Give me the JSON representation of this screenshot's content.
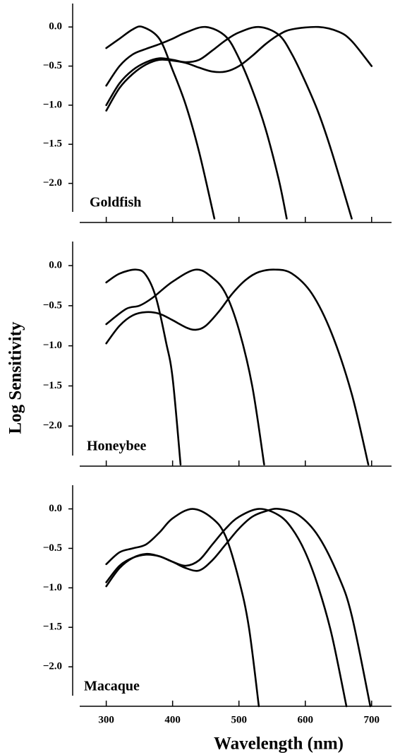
{
  "chart_data": [
    {
      "type": "line",
      "label": "Goldfish",
      "xlim": [
        260,
        730
      ],
      "ylim": [
        -2.5,
        0.3
      ],
      "xticks": [
        300,
        400,
        500,
        600,
        700
      ],
      "xtick_labels": false,
      "yticks": [
        {
          "value": 0,
          "label": "0.0"
        },
        {
          "value": -0.5,
          "label": "−0.5"
        },
        {
          "value": -1,
          "label": "−1.0"
        },
        {
          "value": -1.5,
          "label": "−1.5"
        },
        {
          "value": -2,
          "label": "−2.0"
        }
      ],
      "series": [
        {
          "color": "#000000",
          "x": [
            300,
            320,
            340,
            355,
            380,
            400,
            420,
            440,
            463
          ],
          "values": [
            -0.27,
            -0.15,
            -0.03,
            0,
            -0.15,
            -0.55,
            -1.0,
            -1.6,
            -2.45
          ]
        },
        {
          "color": "#000000",
          "x": [
            300,
            320,
            340,
            360,
            380,
            400,
            420,
            450,
            480,
            500,
            520,
            540,
            560,
            572
          ],
          "values": [
            -0.75,
            -0.5,
            -0.35,
            -0.28,
            -0.22,
            -0.15,
            -0.07,
            0,
            -0.12,
            -0.4,
            -0.8,
            -1.3,
            -1.95,
            -2.45
          ]
        },
        {
          "color": "#000000",
          "x": [
            300,
            320,
            340,
            360,
            380,
            400,
            420,
            440,
            460,
            480,
            500,
            530,
            560,
            580,
            600,
            620,
            640,
            670
          ],
          "values": [
            -1.0,
            -0.72,
            -0.55,
            -0.45,
            -0.4,
            -0.42,
            -0.45,
            -0.42,
            -0.3,
            -0.17,
            -0.07,
            0,
            -0.1,
            -0.35,
            -0.7,
            -1.1,
            -1.6,
            -2.45
          ]
        },
        {
          "color": "#000000",
          "x": [
            300,
            320,
            340,
            360,
            380,
            400,
            420,
            440,
            460,
            480,
            500,
            520,
            540,
            560,
            580,
            620,
            650,
            670,
            700
          ],
          "values": [
            -1.07,
            -0.78,
            -0.6,
            -0.48,
            -0.42,
            -0.43,
            -0.46,
            -0.52,
            -0.57,
            -0.57,
            -0.5,
            -0.37,
            -0.22,
            -0.1,
            -0.03,
            0,
            -0.06,
            -0.18,
            -0.5
          ]
        }
      ]
    },
    {
      "type": "line",
      "label": "Honeybee",
      "ylabel": "Log Sensitivity",
      "xlim": [
        260,
        730
      ],
      "ylim": [
        -2.5,
        0.3
      ],
      "xticks": [
        300,
        400,
        500,
        600,
        700
      ],
      "xtick_labels": false,
      "yticks": [
        {
          "value": 0,
          "label": "0.0"
        },
        {
          "value": -0.5,
          "label": "−0.5"
        },
        {
          "value": -1,
          "label": "−1.0"
        },
        {
          "value": -1.5,
          "label": "−1.5"
        },
        {
          "value": -2,
          "label": "−2.0"
        }
      ],
      "series": [
        {
          "color": "#000000",
          "x": [
            300,
            320,
            345,
            360,
            375,
            390,
            400,
            412
          ],
          "values": [
            -0.21,
            -0.1,
            -0.05,
            -0.12,
            -0.4,
            -0.95,
            -1.4,
            -2.48
          ]
        },
        {
          "color": "#000000",
          "x": [
            300,
            330,
            350,
            370,
            400,
            435,
            460,
            480,
            500,
            520,
            538
          ],
          "values": [
            -0.73,
            -0.54,
            -0.5,
            -0.4,
            -0.2,
            -0.05,
            -0.15,
            -0.35,
            -0.8,
            -1.5,
            -2.48
          ]
        },
        {
          "color": "#000000",
          "x": [
            300,
            320,
            340,
            360,
            380,
            400,
            420,
            435,
            450,
            470,
            490,
            510,
            530,
            555,
            580,
            610,
            640,
            670,
            695
          ],
          "values": [
            -0.97,
            -0.75,
            -0.62,
            -0.58,
            -0.6,
            -0.68,
            -0.77,
            -0.8,
            -0.75,
            -0.57,
            -0.35,
            -0.18,
            -0.08,
            -0.05,
            -0.1,
            -0.35,
            -0.85,
            -1.6,
            -2.48
          ]
        }
      ]
    },
    {
      "type": "line",
      "label": "Macaque",
      "xlabel": "Wavelength (nm)",
      "xlim": [
        260,
        730
      ],
      "ylim": [
        -2.5,
        0.3
      ],
      "xticks": [
        300,
        400,
        500,
        600,
        700
      ],
      "xtick_labels": true,
      "yticks": [
        {
          "value": 0,
          "label": "0.0"
        },
        {
          "value": -0.5,
          "label": "−0.5"
        },
        {
          "value": -1,
          "label": "−1.0"
        },
        {
          "value": -1.5,
          "label": "−1.5"
        },
        {
          "value": -2,
          "label": "−2.0"
        }
      ],
      "series": [
        {
          "color": "#000000",
          "x": [
            300,
            320,
            340,
            360,
            380,
            400,
            430,
            460,
            480,
            500,
            515,
            530
          ],
          "values": [
            -0.7,
            -0.55,
            -0.5,
            -0.45,
            -0.3,
            -0.12,
            0,
            -0.12,
            -0.35,
            -0.9,
            -1.5,
            -2.5
          ]
        },
        {
          "color": "#000000",
          "x": [
            300,
            320,
            340,
            360,
            380,
            400,
            420,
            440,
            460,
            480,
            500,
            530,
            560,
            580,
            600,
            620,
            640,
            662
          ],
          "values": [
            -0.93,
            -0.72,
            -0.62,
            -0.58,
            -0.6,
            -0.67,
            -0.72,
            -0.65,
            -0.45,
            -0.25,
            -0.1,
            0,
            -0.08,
            -0.25,
            -0.55,
            -1.0,
            -1.6,
            -2.5
          ]
        },
        {
          "color": "#000000",
          "x": [
            300,
            320,
            340,
            360,
            380,
            400,
            420,
            440,
            460,
            480,
            500,
            520,
            540,
            560,
            590,
            620,
            650,
            670,
            698
          ],
          "values": [
            -0.98,
            -0.75,
            -0.62,
            -0.57,
            -0.6,
            -0.67,
            -0.75,
            -0.78,
            -0.65,
            -0.45,
            -0.25,
            -0.1,
            -0.03,
            0,
            -0.08,
            -0.35,
            -0.85,
            -1.35,
            -2.5
          ]
        }
      ]
    }
  ]
}
